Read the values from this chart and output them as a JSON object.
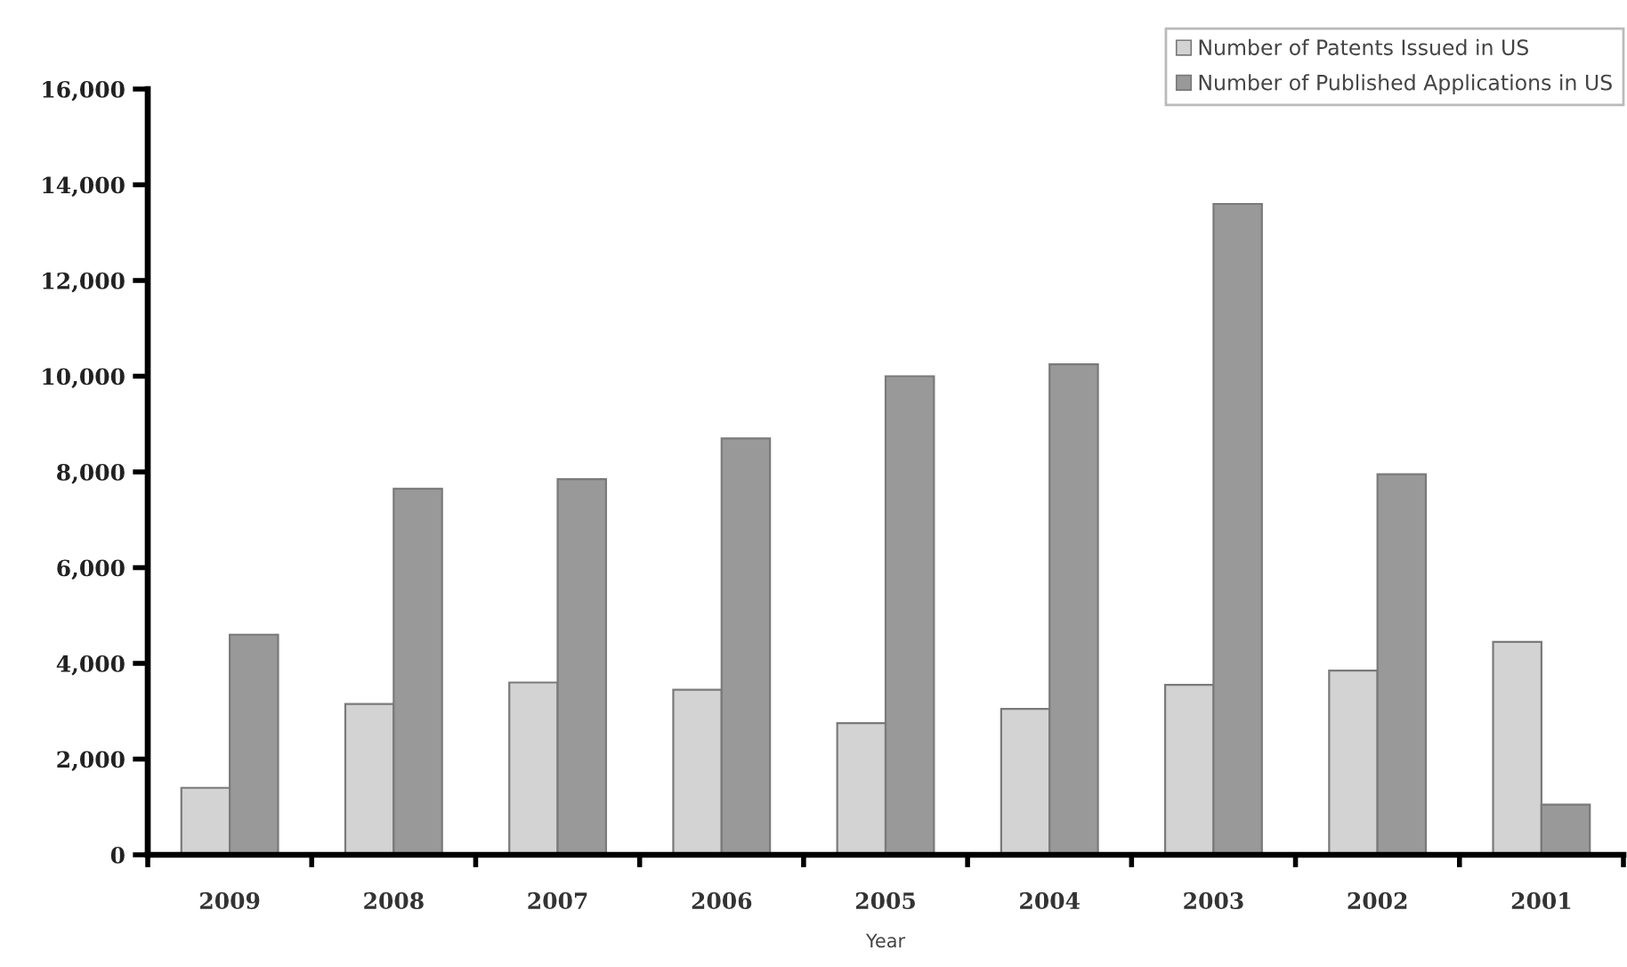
{
  "chart_data": {
    "type": "bar",
    "xlabel": "Year",
    "categories": [
      "2009",
      "2008",
      "2007",
      "2006",
      "2005",
      "2004",
      "2003",
      "2002",
      "2001"
    ],
    "series": [
      {
        "name": "Number of Patents Issued in US",
        "color": "#d3d3d3",
        "values": [
          1400,
          3150,
          3600,
          3450,
          2750,
          3050,
          3550,
          3850,
          4450
        ]
      },
      {
        "name": "Number of Published Applications in US",
        "color": "#999999",
        "values": [
          4600,
          7650,
          7850,
          8700,
          10000,
          10250,
          13600,
          7950,
          1050
        ]
      }
    ],
    "ylim": [
      0,
      16000
    ],
    "yticks": [
      {
        "value": 0,
        "label": "0"
      },
      {
        "value": 2000,
        "label": "2,000"
      },
      {
        "value": 4000,
        "label": "4,000"
      },
      {
        "value": 6000,
        "label": "6,000"
      },
      {
        "value": 8000,
        "label": "8,000"
      },
      {
        "value": 10000,
        "label": "10,000"
      },
      {
        "value": 12000,
        "label": "12,000"
      },
      {
        "value": 14000,
        "label": "14,000"
      },
      {
        "value": 16000,
        "label": "16,000"
      }
    ],
    "legend": "top right"
  }
}
